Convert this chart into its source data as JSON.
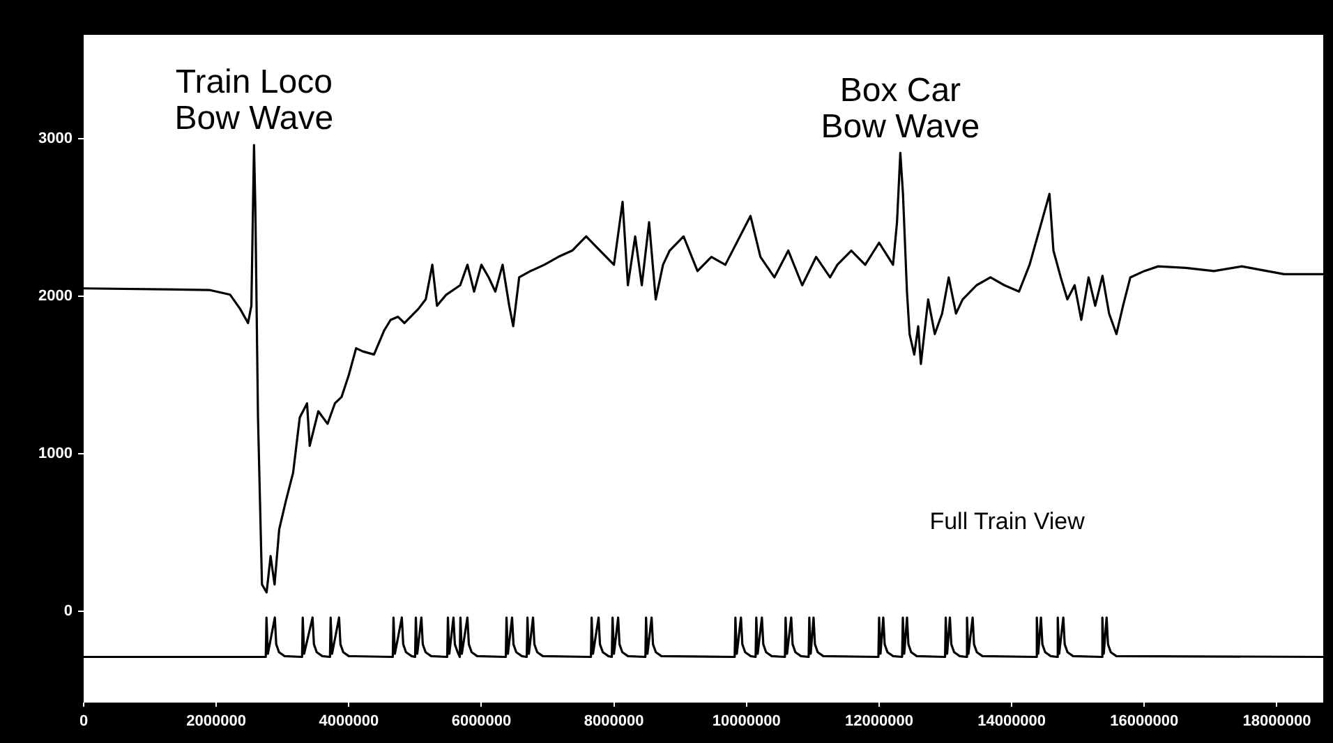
{
  "chart_data": {
    "type": "line",
    "annotations": [
      {
        "text": "Train Loco\nBow Wave",
        "x": 2570000,
        "y": 2960
      },
      {
        "text": "Box Car\nBow Wave",
        "x": 12320000,
        "y": 2910
      },
      "Full Train View"
    ],
    "xlim": [
      0,
      18700000
    ],
    "xticks": [
      0,
      2000000,
      4000000,
      6000000,
      8000000,
      10000000,
      12000000,
      14000000,
      16000000,
      18000000
    ],
    "ylim": [
      -580,
      3660
    ],
    "yticks": [
      0,
      1000,
      2000,
      3000
    ],
    "grid": false,
    "legend": false,
    "marker": "none",
    "line_style": "solid",
    "series": [
      {
        "color": "#000000",
        "x": [
          0,
          1895000,
          2210000,
          2360000,
          2480000,
          2530000,
          2570000,
          2590000,
          2630000,
          2690000,
          2760000,
          2820000,
          2880000,
          2950000,
          3050000,
          3160000,
          3260000,
          3370000,
          3410000,
          3540000,
          3680000,
          3790000,
          3890000,
          4000000,
          4110000,
          4210000,
          4380000,
          4530000,
          4630000,
          4740000,
          4840000,
          5050000,
          5160000,
          5260000,
          5330000,
          5470000,
          5680000,
          5790000,
          5890000,
          6000000,
          6110000,
          6210000,
          6320000,
          6420000,
          6480000,
          6570000,
          6740000,
          6950000,
          7160000,
          7370000,
          7580000,
          7790000,
          8000000,
          8130000,
          8210000,
          8320000,
          8420000,
          8530000,
          8630000,
          8740000,
          8840000,
          9050000,
          9260000,
          9470000,
          9680000,
          10060000,
          10210000,
          10420000,
          10630000,
          10840000,
          11050000,
          11260000,
          11370000,
          11580000,
          11790000,
          12000000,
          12210000,
          12270000,
          12320000,
          12360000,
          12420000,
          12460000,
          12530000,
          12590000,
          12630000,
          12740000,
          12840000,
          12950000,
          13050000,
          13160000,
          13260000,
          13470000,
          13680000,
          13890000,
          14110000,
          14270000,
          14570000,
          14630000,
          14740000,
          14840000,
          14950000,
          15050000,
          15160000,
          15260000,
          15370000,
          15470000,
          15580000,
          15680000,
          15790000,
          16000000,
          16210000,
          16630000,
          17050000,
          17470000,
          18110000,
          18700000
        ],
        "values": [
          2050,
          2040,
          2010,
          1920,
          1830,
          1940,
          2960,
          2560,
          1230,
          170,
          120,
          350,
          170,
          520,
          700,
          880,
          1230,
          1320,
          1050,
          1270,
          1190,
          1320,
          1360,
          1500,
          1670,
          1650,
          1630,
          1780,
          1850,
          1870,
          1830,
          1920,
          1980,
          2200,
          1940,
          2010,
          2070,
          2200,
          2030,
          2200,
          2120,
          2030,
          2200,
          1940,
          1810,
          2120,
          2160,
          2200,
          2250,
          2290,
          2380,
          2290,
          2200,
          2600,
          2070,
          2380,
          2070,
          2470,
          1980,
          2200,
          2290,
          2380,
          2160,
          2250,
          2200,
          2510,
          2250,
          2120,
          2290,
          2070,
          2250,
          2120,
          2200,
          2290,
          2200,
          2340,
          2200,
          2470,
          2910,
          2650,
          2030,
          1760,
          1630,
          1810,
          1570,
          1980,
          1760,
          1890,
          2120,
          1890,
          1980,
          2070,
          2120,
          2070,
          2030,
          2200,
          2650,
          2290,
          2120,
          1980,
          2070,
          1850,
          2120,
          1940,
          2130,
          1890,
          1760,
          1940,
          2120,
          2160,
          2190,
          2180,
          2160,
          2190,
          2140,
          2140
        ]
      },
      {
        "color": "#000000",
        "x": [
          0,
          2747000,
          2758000,
          2779000,
          2884000,
          2905000,
          2947000,
          3032000,
          3295000,
          3305000,
          3326000,
          3453000,
          3474000,
          3516000,
          3600000,
          3716000,
          3726000,
          3747000,
          3853000,
          3874000,
          3916000,
          4000000,
          4663000,
          4674000,
          4695000,
          4800000,
          4821000,
          4863000,
          4947000,
          5000000,
          5011000,
          5032000,
          5095000,
          5116000,
          5158000,
          5242000,
          5484000,
          5495000,
          5516000,
          5579000,
          5600000,
          5642000,
          5674000,
          5684000,
          5705000,
          5789000,
          5811000,
          5853000,
          5937000,
          6368000,
          6379000,
          6400000,
          6463000,
          6484000,
          6526000,
          6611000,
          6684000,
          6695000,
          6716000,
          6779000,
          6800000,
          6842000,
          6926000,
          7653000,
          7663000,
          7684000,
          7768000,
          7789000,
          7832000,
          7916000,
          7968000,
          7979000,
          8000000,
          8063000,
          8084000,
          8126000,
          8211000,
          8474000,
          8484000,
          8505000,
          8568000,
          8589000,
          8632000,
          8716000,
          9821000,
          9832000,
          9853000,
          9916000,
          9937000,
          9979000,
          10063000,
          10137000,
          10147000,
          10168000,
          10232000,
          10253000,
          10295000,
          10379000,
          10579000,
          10589000,
          10611000,
          10674000,
          10695000,
          10737000,
          10821000,
          10937000,
          10947000,
          10968000,
          11011000,
          11032000,
          11074000,
          11158000,
          11989000,
          12000000,
          12021000,
          12063000,
          12084000,
          12126000,
          12211000,
          12347000,
          12358000,
          12379000,
          12421000,
          12442000,
          12484000,
          12568000,
          12995000,
          13005000,
          13026000,
          13068000,
          13089000,
          13132000,
          13216000,
          13316000,
          13326000,
          13347000,
          13411000,
          13432000,
          13474000,
          13558000,
          14368000,
          14379000,
          14400000,
          14442000,
          14463000,
          14505000,
          14589000,
          14684000,
          14695000,
          14716000,
          14779000,
          14800000,
          14842000,
          14926000,
          15358000,
          15368000,
          15389000,
          15432000,
          15453000,
          15495000,
          15579000,
          18700000
        ],
        "values": [
          -290,
          -290,
          -40,
          -270,
          -40,
          -210,
          -260,
          -285,
          -290,
          -40,
          -270,
          -40,
          -210,
          -260,
          -285,
          -290,
          -40,
          -270,
          -40,
          -210,
          -260,
          -285,
          -290,
          -40,
          -270,
          -40,
          -210,
          -260,
          -285,
          -290,
          -40,
          -270,
          -40,
          -210,
          -260,
          -285,
          -290,
          -40,
          -270,
          -40,
          -210,
          -260,
          -290,
          -40,
          -270,
          -40,
          -210,
          -260,
          -285,
          -290,
          -40,
          -270,
          -40,
          -210,
          -260,
          -285,
          -290,
          -40,
          -270,
          -40,
          -210,
          -260,
          -285,
          -290,
          -40,
          -270,
          -40,
          -210,
          -260,
          -285,
          -290,
          -40,
          -270,
          -40,
          -210,
          -260,
          -285,
          -290,
          -40,
          -270,
          -40,
          -210,
          -260,
          -285,
          -290,
          -40,
          -270,
          -40,
          -210,
          -260,
          -285,
          -290,
          -40,
          -270,
          -40,
          -210,
          -260,
          -285,
          -290,
          -40,
          -270,
          -40,
          -210,
          -260,
          -285,
          -290,
          -40,
          -270,
          -40,
          -210,
          -260,
          -285,
          -290,
          -40,
          -270,
          -40,
          -210,
          -260,
          -285,
          -290,
          -40,
          -270,
          -40,
          -210,
          -260,
          -285,
          -290,
          -40,
          -270,
          -40,
          -210,
          -260,
          -285,
          -290,
          -40,
          -270,
          -40,
          -210,
          -260,
          -285,
          -290,
          -40,
          -270,
          -40,
          -210,
          -260,
          -285,
          -290,
          -40,
          -270,
          -40,
          -210,
          -260,
          -285,
          -290,
          -40,
          -270,
          -40,
          -210,
          -260,
          -285,
          -290
        ]
      }
    ]
  }
}
